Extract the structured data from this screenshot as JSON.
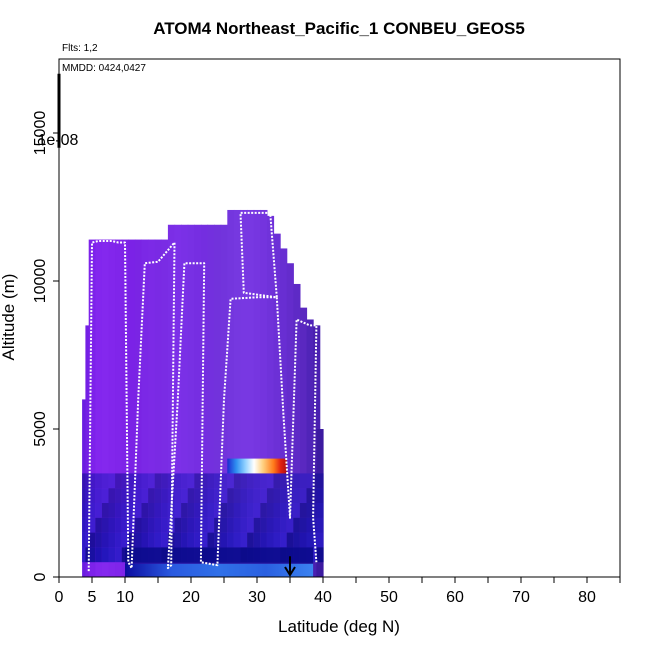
{
  "chart_data": {
    "type": "heatmap",
    "title": "ATOM4 Northeast_Pacific_1 CONBEU_GEOS5",
    "flights_note": "Flts: 1,2",
    "dates_note": "MMDD: 0424,0427",
    "colorbar_label": "1e-08",
    "xlabel": "Latitude (deg N)",
    "ylabel": "Altitude (m)",
    "xlim": [
      0,
      85
    ],
    "ylim": [
      0,
      17500
    ],
    "x_ticks": [
      0,
      5,
      10,
      20,
      30,
      40,
      50,
      60,
      70,
      80
    ],
    "x_minor_ticks": [
      15,
      25,
      35,
      45,
      55,
      65,
      75,
      85
    ],
    "y_ticks": [
      0,
      5000,
      10000,
      15000
    ],
    "arrow_marker": {
      "x": 35,
      "y_from": 700,
      "y_to": 0
    },
    "hot_band": {
      "x_from": 25.5,
      "x_to": 34.5,
      "y_from": 3500,
      "y_to": 4000
    },
    "columns": [
      {
        "lat": 4,
        "top": 6000,
        "color": "#6a1de0"
      },
      {
        "lat": 4.5,
        "top": 8500,
        "color": "#7420e4"
      },
      {
        "lat": 5,
        "top": 11400,
        "color": "#7d22ea"
      },
      {
        "lat": 6,
        "top": 11400,
        "color": "#8326ee"
      },
      {
        "lat": 7,
        "top": 11400,
        "color": "#8428ee"
      },
      {
        "lat": 8,
        "top": 11400,
        "color": "#8226ec"
      },
      {
        "lat": 9,
        "top": 11400,
        "color": "#8025ea"
      },
      {
        "lat": 10,
        "top": 11400,
        "color": "#7e24e8"
      },
      {
        "lat": 11,
        "top": 11400,
        "color": "#7b22e6"
      },
      {
        "lat": 12,
        "top": 11400,
        "color": "#7a24e4"
      },
      {
        "lat": 13,
        "top": 11400,
        "color": "#7b28e6"
      },
      {
        "lat": 14,
        "top": 11400,
        "color": "#7c2ae6"
      },
      {
        "lat": 15,
        "top": 11400,
        "color": "#7a2ae4"
      },
      {
        "lat": 16,
        "top": 11400,
        "color": "#7a2ce4"
      },
      {
        "lat": 17,
        "top": 11900,
        "color": "#7b2ee6"
      },
      {
        "lat": 18,
        "top": 11900,
        "color": "#7c30e8"
      },
      {
        "lat": 19,
        "top": 11900,
        "color": "#7a30e6"
      },
      {
        "lat": 20,
        "top": 11900,
        "color": "#7830e4"
      },
      {
        "lat": 21,
        "top": 11900,
        "color": "#762ee2"
      },
      {
        "lat": 22,
        "top": 11900,
        "color": "#742ee0"
      },
      {
        "lat": 23,
        "top": 11900,
        "color": "#7330de"
      },
      {
        "lat": 24,
        "top": 11900,
        "color": "#7232dc"
      },
      {
        "lat": 25,
        "top": 11900,
        "color": "#7234dc"
      },
      {
        "lat": 26,
        "top": 12400,
        "color": "#7436de"
      },
      {
        "lat": 27,
        "top": 12400,
        "color": "#7638e0"
      },
      {
        "lat": 28,
        "top": 12400,
        "color": "#7838e2"
      },
      {
        "lat": 29,
        "top": 12400,
        "color": "#7838e2"
      },
      {
        "lat": 30,
        "top": 12400,
        "color": "#7636e0"
      },
      {
        "lat": 31,
        "top": 12400,
        "color": "#7434de"
      },
      {
        "lat": 32,
        "top": 12200,
        "color": "#7032da"
      },
      {
        "lat": 33,
        "top": 11600,
        "color": "#6c30d6"
      },
      {
        "lat": 34,
        "top": 11100,
        "color": "#682ed2"
      },
      {
        "lat": 35,
        "top": 10600,
        "color": "#642ccc"
      },
      {
        "lat": 36,
        "top": 9900,
        "color": "#5e2ac6"
      },
      {
        "lat": 37,
        "top": 9100,
        "color": "#5a28c0"
      },
      {
        "lat": 38,
        "top": 8700,
        "color": "#5024b8"
      },
      {
        "lat": 39,
        "top": 8500,
        "color": "#4a20b0"
      },
      {
        "lat": 39.5,
        "top": 5000,
        "color": "#3c1aa0"
      }
    ],
    "flight_track": [
      [
        4.5,
        200
      ],
      [
        5,
        11300
      ],
      [
        6,
        11350
      ],
      [
        8,
        11350
      ],
      [
        9,
        11300
      ],
      [
        10,
        11300
      ],
      [
        10.5,
        500
      ],
      [
        11,
        300
      ],
      [
        12,
        6000
      ],
      [
        13,
        10600
      ],
      [
        15,
        10650
      ],
      [
        17.5,
        11300
      ],
      [
        17,
        400
      ],
      [
        16.5,
        300
      ],
      [
        18,
        6000
      ],
      [
        19,
        10600
      ],
      [
        22,
        10600
      ],
      [
        21.5,
        500
      ],
      [
        24,
        400
      ],
      [
        25,
        6000
      ],
      [
        26,
        9400
      ],
      [
        30,
        9450
      ],
      [
        33,
        9450
      ],
      [
        32,
        12300
      ],
      [
        27.5,
        12300
      ],
      [
        28,
        9600
      ],
      [
        33,
        9450
      ],
      [
        34,
        5500
      ],
      [
        35,
        2000
      ],
      [
        36,
        8700
      ],
      [
        38,
        8500
      ],
      [
        39,
        8500
      ],
      [
        38.5,
        2000
      ],
      [
        39,
        500
      ]
    ]
  }
}
